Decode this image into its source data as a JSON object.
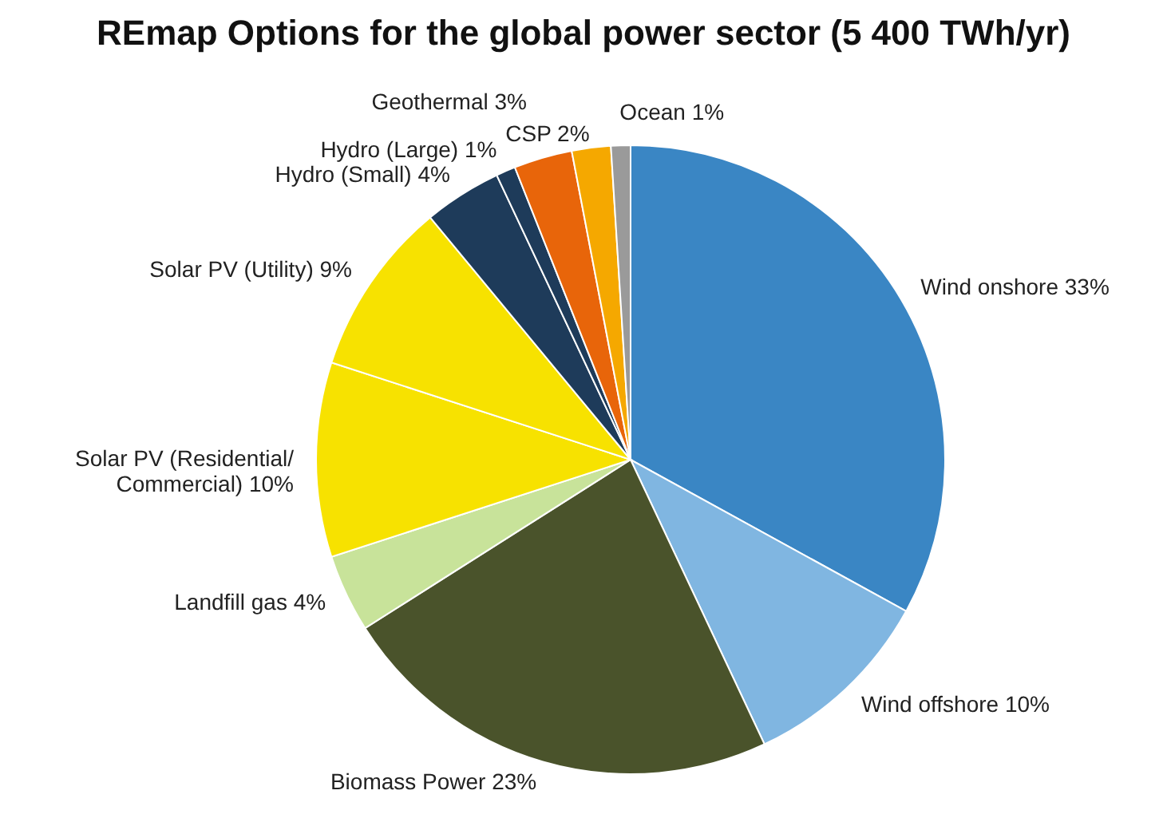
{
  "chart_data": {
    "type": "pie",
    "title": "REmap Options for the global power sector (5 400 TWh/yr)",
    "categories": [
      "Wind onshore",
      "Wind offshore",
      "Biomass Power",
      "Landfill gas",
      "Solar PV (Residential/Commercial)",
      "Solar PV (Utility)",
      "Hydro (Small)",
      "Hydro (Large)",
      "Geothermal",
      "CSP",
      "Ocean"
    ],
    "values": [
      33,
      10,
      23,
      4,
      10,
      9,
      4,
      1,
      3,
      2,
      1
    ],
    "colors": [
      "#3a86c4",
      "#80b6e1",
      "#4a532b",
      "#c8e39a",
      "#f7e200",
      "#f7e200",
      "#1e3b5a",
      "#1e3b5a",
      "#e8650a",
      "#f5a800",
      "#9a9a9a"
    ],
    "value_labels": [
      "33%",
      "10%",
      "23%",
      "4%",
      "10%",
      "9%",
      "4%",
      "1%",
      "3%",
      "2%",
      "1%"
    ]
  }
}
